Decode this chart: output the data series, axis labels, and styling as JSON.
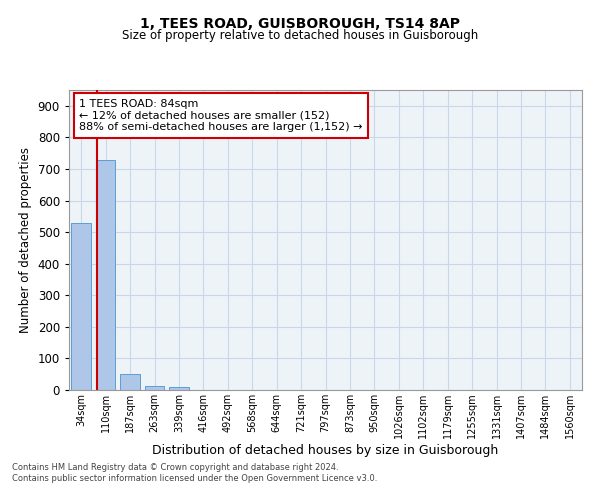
{
  "title1": "1, TEES ROAD, GUISBOROUGH, TS14 8AP",
  "title2": "Size of property relative to detached houses in Guisborough",
  "xlabel": "Distribution of detached houses by size in Guisborough",
  "ylabel": "Number of detached properties",
  "categories": [
    "34sqm",
    "110sqm",
    "187sqm",
    "263sqm",
    "339sqm",
    "416sqm",
    "492sqm",
    "568sqm",
    "644sqm",
    "721sqm",
    "797sqm",
    "873sqm",
    "950sqm",
    "1026sqm",
    "1102sqm",
    "1179sqm",
    "1255sqm",
    "1331sqm",
    "1407sqm",
    "1484sqm",
    "1560sqm"
  ],
  "values": [
    528,
    728,
    50,
    12,
    10,
    0,
    0,
    0,
    0,
    0,
    0,
    0,
    0,
    0,
    0,
    0,
    0,
    0,
    0,
    0,
    0
  ],
  "bar_color": "#aec6e8",
  "bar_edge_color": "#5a9fd4",
  "grid_color": "#c8d8e8",
  "background_color": "#eef3f8",
  "red_line_x": 0.645,
  "annotation_text": "1 TEES ROAD: 84sqm\n← 12% of detached houses are smaller (152)\n88% of semi-detached houses are larger (1,152) →",
  "annotation_box_color": "#ffffff",
  "annotation_border_color": "#cc0000",
  "ylim": [
    0,
    950
  ],
  "yticks": [
    0,
    100,
    200,
    300,
    400,
    500,
    600,
    700,
    800,
    900
  ],
  "footer1": "Contains HM Land Registry data © Crown copyright and database right 2024.",
  "footer2": "Contains public sector information licensed under the Open Government Licence v3.0."
}
